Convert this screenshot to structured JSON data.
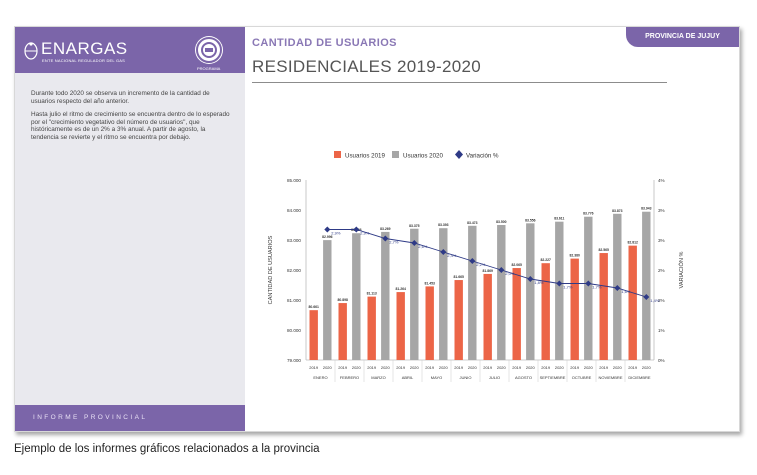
{
  "sidebar": {
    "logo_text": "ENARGAS",
    "logo_subtext": "ENTE NACIONAL REGULADOR DEL GAS",
    "program_label": "PROGRAMA",
    "paragraphs": [
      "Durante todo 2020 se observa un incremento de la cantidad de usuarios respecto del año anterior.",
      "Hasta julio el ritmo de crecimiento se encuentra dentro de lo esperado por el \"crecimiento vegetativo del número de usuarios\", que históricamente es de un 2% a 3% anual. A partir de agosto, la tendencia se revierte y el ritmo se encuentra por debajo."
    ],
    "footer": "INFORME PROVINCIAL"
  },
  "header": {
    "province_tab": "PROVINCIA DE JUJUY",
    "subtitle": "CANTIDAD DE USUARIOS",
    "title": "RESIDENCIALES 2019-2020"
  },
  "caption": "Ejemplo de los informes gráficos relacionados a la provincia",
  "colors": {
    "purple": "#7b65a9",
    "bar2019": "#ec6547",
    "bar2020": "#a6a6a6",
    "variation": "#2e3a86"
  },
  "chart_data": {
    "type": "bar",
    "categories": [
      "ENERO",
      "FEBRERO",
      "MARZO",
      "ABRIL",
      "MAYO",
      "JUNIO",
      "JULIO",
      "AGOSTO",
      "SEPTIEMBRE",
      "OCTUBRE",
      "NOVIEMBRE",
      "DICIEMBRE"
    ],
    "sub_labels": [
      "2019",
      "2020"
    ],
    "series": [
      {
        "name": "Usuarios 2019",
        "values": [
          80.661,
          80.898,
          81.113,
          81.264,
          81.453,
          81.665,
          81.869,
          82.065,
          82.227,
          82.38,
          82.565,
          82.812
        ],
        "labels": [
          "80.661",
          "80.898",
          "81.113",
          "81.264",
          "81.453",
          "81.665",
          "81.869",
          "82.065",
          "82.227",
          "82.380",
          "82.565",
          "82.812"
        ]
      },
      {
        "name": "Usuarios 2020",
        "values": [
          82.996,
          83.226,
          83.269,
          83.375,
          83.393,
          83.473,
          83.5,
          83.556,
          83.611,
          83.776,
          83.873,
          83.943
        ],
        "labels": [
          "82.996",
          "83.226",
          "83.269",
          "83.375",
          "83.393",
          "83.473",
          "83.500",
          "83.556",
          "83.611",
          "83.776",
          "83.873",
          "83.943"
        ]
      },
      {
        "name": "Variación %",
        "axis": "right",
        "values": [
          2.9,
          2.9,
          2.7,
          2.6,
          2.4,
          2.2,
          2.0,
          1.8,
          1.7,
          1.7,
          1.6,
          1.4
        ],
        "labels": [
          "2,9%",
          "2,9%",
          "2,7%",
          "2,6%",
          "2,4%",
          "2,2%",
          "2,0%",
          "1,8%",
          "1,7%",
          "1,7%",
          "1,6%",
          "1,4%"
        ]
      }
    ],
    "ylabel": "CANTIDAD DE USUARIOS",
    "y2label": "VARIACIÓN %",
    "ylim": [
      79,
      85
    ],
    "yticks": [
      "79.000",
      "80.000",
      "81.000",
      "82.000",
      "83.000",
      "84.000",
      "85.000"
    ],
    "y2lim": [
      0,
      4
    ],
    "y2ticks": [
      "0%",
      "1%",
      "2%",
      "2%",
      "3%",
      "3%",
      "4%"
    ],
    "legend_position": "top",
    "grid": false
  }
}
